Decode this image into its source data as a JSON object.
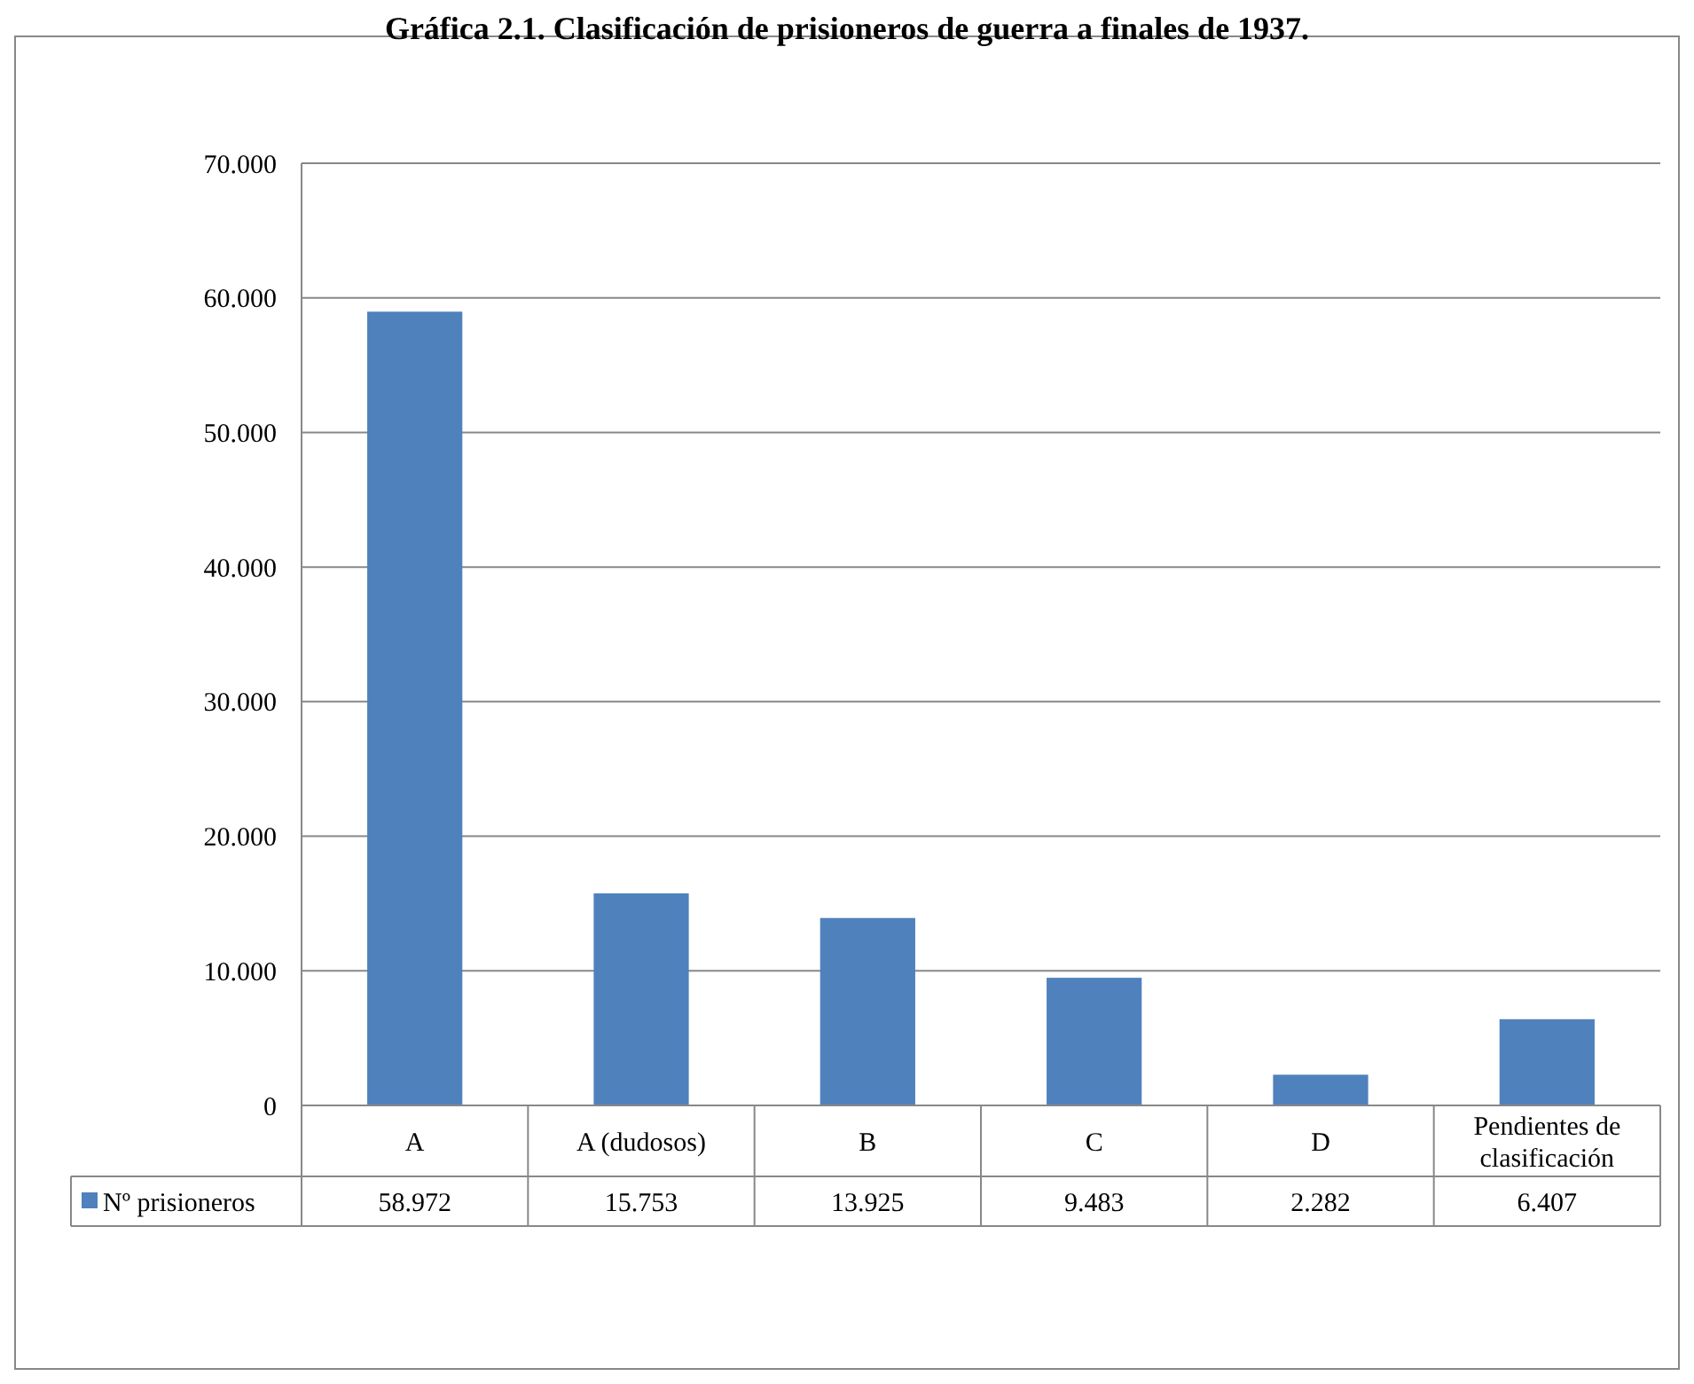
{
  "chart_data": {
    "type": "bar",
    "title": "Gráfica 2.1. Clasificación de prisioneros de guerra a finales de 1937.",
    "categories": [
      "A",
      "A (dudosos)",
      "B",
      "C",
      "D",
      "Pendientes de clasificación"
    ],
    "series": [
      {
        "name": "Nº prisioneros",
        "color": "#4f81bd",
        "values": [
          58972,
          15753,
          13925,
          9483,
          2282,
          6407
        ],
        "value_labels": [
          "58.972",
          "15.753",
          "13.925",
          "9.483",
          "2.282",
          "6.407"
        ]
      }
    ],
    "ylim": [
      0,
      70000
    ],
    "yticks": [
      0,
      {
        "value": 10000,
        "label": "10.000"
      },
      {
        "value": 20000,
        "label": "20.000"
      },
      {
        "value": 30000,
        "label": "30.000"
      },
      {
        "value": 40000,
        "label": "40.000"
      },
      {
        "value": 50000,
        "label": "50.000"
      },
      {
        "value": 60000,
        "label": "60.000"
      },
      {
        "value": 70000,
        "label": "70.000"
      }
    ],
    "grid": "y",
    "legend": "bottom"
  }
}
